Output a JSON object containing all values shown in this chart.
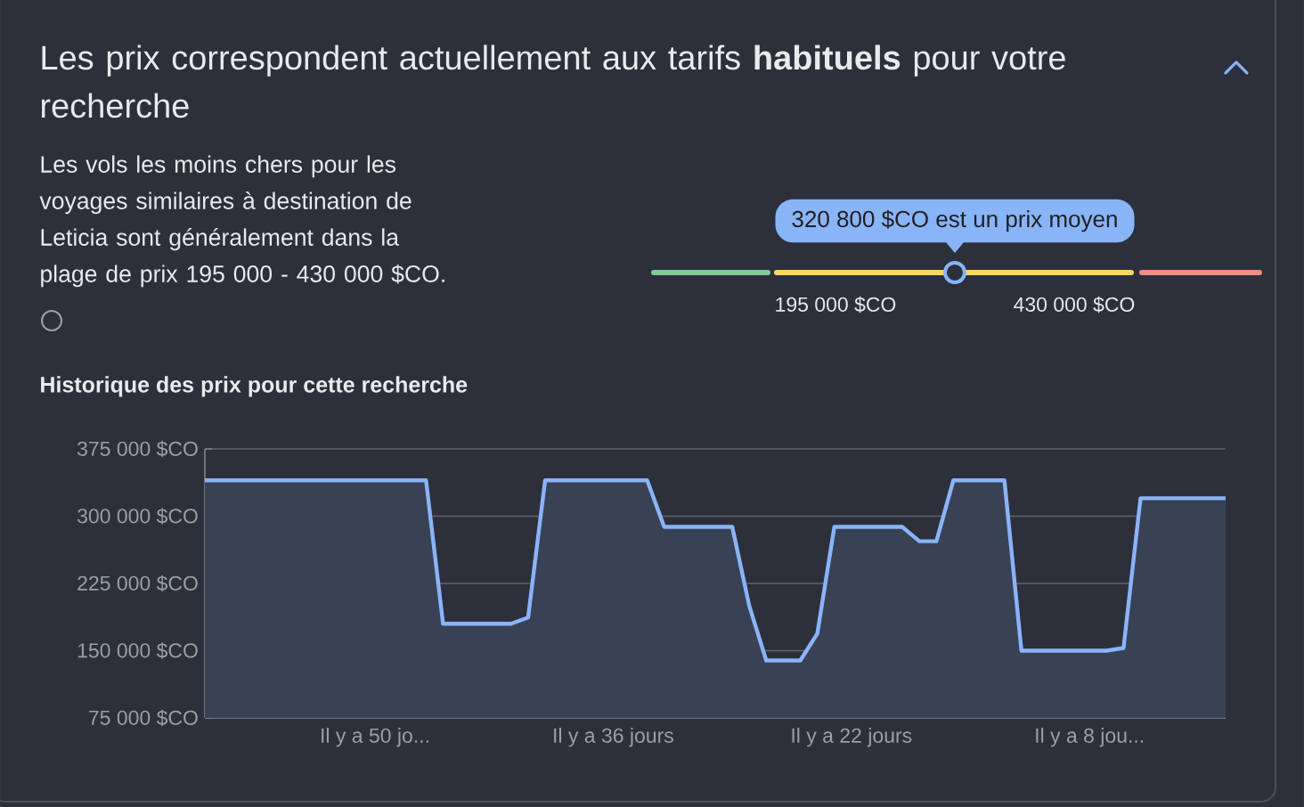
{
  "chart_data": {
    "type": "area",
    "title": "Les prix correspondent actuellement aux tarifs **habituels** pour votre recherche",
    "subtitle": "Les vols les moins chers pour les voyages similaires à destination de Leticia sont généralement dans la plage de prix 195 000 - 430 000 $CO.",
    "annotations": [
      "320 800 $CO est un prix moyen",
      "195 000 $CO",
      "430 000 $CO",
      "Historique des prix pour cette recherche"
    ],
    "categories": [
      null,
      null,
      null,
      null,
      null,
      null,
      null,
      null,
      null,
      null,
      "Il y a 50 jo...",
      null,
      null,
      null,
      null,
      null,
      null,
      null,
      null,
      null,
      null,
      null,
      null,
      null,
      "Il y a 36 jours",
      null,
      null,
      null,
      null,
      null,
      null,
      null,
      null,
      null,
      null,
      null,
      null,
      null,
      "Il y a 22 jours",
      null,
      null,
      null,
      null,
      null,
      null,
      null,
      null,
      null,
      null,
      null,
      null,
      null,
      "Il y a 8 jou...",
      null,
      null,
      null,
      null,
      null,
      null,
      null,
      null
    ],
    "series": [
      {
        "color": "#8ab4f8",
        "values": [
          340000,
          340000,
          340000,
          340000,
          340000,
          340000,
          340000,
          340000,
          340000,
          340000,
          340000,
          340000,
          340000,
          340000,
          180000,
          180000,
          180000,
          180000,
          180000,
          187000,
          340000,
          340000,
          340000,
          340000,
          340000,
          340000,
          340000,
          288000,
          288000,
          288000,
          288000,
          288000,
          200000,
          139000,
          139000,
          139000,
          169000,
          288000,
          288000,
          288000,
          288000,
          288000,
          272000,
          272000,
          340000,
          340000,
          340000,
          340000,
          150000,
          150000,
          150000,
          150000,
          150000,
          150000,
          153000,
          320000,
          320000,
          320000,
          320000,
          320000,
          320000
        ]
      }
    ],
    "ylim": [
      75000,
      375000
    ],
    "yticks": [
      {
        "value": 75000,
        "label": "75 000 $CO"
      },
      {
        "value": 150000,
        "label": "150 000 $CO"
      },
      {
        "value": 225000,
        "label": "225 000 $CO"
      },
      {
        "value": 300000,
        "label": "300 000 $CO"
      },
      {
        "value": 375000,
        "label": "375 000 $CO"
      }
    ],
    "grid": "y",
    "marker": "none",
    "line_style": "solid"
  }
}
